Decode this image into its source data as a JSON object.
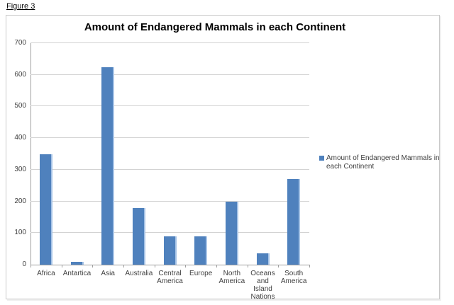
{
  "figure_label": "Figure 3",
  "chart_data": {
    "type": "bar",
    "title": "Amount of Endangered Mammals in each Continent",
    "categories": [
      "Africa",
      "Antartica",
      "Asia",
      "Australia",
      "Central America",
      "Europe",
      "North America",
      "Oceans and Island Nations",
      "South America"
    ],
    "values": [
      350,
      10,
      625,
      180,
      90,
      90,
      200,
      35,
      270
    ],
    "series_name": "Amount of Endangered Mammals in each Continent",
    "legend_label": "Amount of Endangered Mammals in each Continent",
    "legend_position": "right",
    "xlabel": "",
    "ylabel": "",
    "ylim": [
      0,
      700
    ],
    "yticks": [
      0,
      100,
      200,
      300,
      400,
      500,
      600,
      700
    ],
    "grid": true,
    "bar_color": "#4F81BD",
    "bar_edge_highlight": "#A6C3E6"
  },
  "colors": {
    "gridline": "#D3D3D3",
    "axis": "#9F9F9F",
    "chart_border": "#C9C9C9",
    "text": "#3F3F3F",
    "background": "#FFFFFF"
  }
}
